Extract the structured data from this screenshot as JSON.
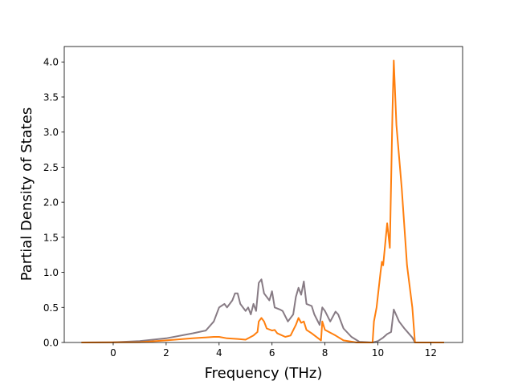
{
  "chart_data": {
    "type": "line",
    "title": "",
    "xlabel": "Frequency (THz)",
    "ylabel": "Partial Density of States",
    "xlim": [
      -1.85,
      13.2
    ],
    "ylim": [
      0,
      4.22
    ],
    "xticks": [
      0,
      2,
      4,
      6,
      8,
      10,
      12
    ],
    "xtick_labels": [
      "0",
      "2",
      "4",
      "6",
      "8",
      "10",
      "12"
    ],
    "yticks": [
      0,
      0.5,
      1,
      1.5,
      2,
      2.5,
      3,
      3.5,
      4
    ],
    "ytick_labels": [
      "0.0",
      "0.5",
      "1.0",
      "1.5",
      "2.0",
      "2.5",
      "3.0",
      "3.5",
      "4.0"
    ],
    "grid": false,
    "series": [
      {
        "color": "#877b84",
        "x": [
          -1.2,
          0,
          1,
          2,
          3,
          3.5,
          3.8,
          4.0,
          4.2,
          4.3,
          4.5,
          4.6,
          4.7,
          4.8,
          5.0,
          5.1,
          5.2,
          5.3,
          5.4,
          5.5,
          5.6,
          5.7,
          5.9,
          6.0,
          6.1,
          6.3,
          6.4,
          6.6,
          6.8,
          6.9,
          7.0,
          7.1,
          7.2,
          7.3,
          7.5,
          7.6,
          7.8,
          7.9,
          8.0,
          8.2,
          8.4,
          8.5,
          8.7,
          9.0,
          9.3,
          9.8,
          10.0,
          10.2,
          10.35,
          10.5,
          10.6,
          10.8,
          11.0,
          11.3,
          11.4,
          12.5
        ],
        "y": [
          0,
          0.002,
          0.02,
          0.06,
          0.13,
          0.17,
          0.3,
          0.5,
          0.55,
          0.5,
          0.6,
          0.7,
          0.7,
          0.55,
          0.45,
          0.5,
          0.4,
          0.55,
          0.45,
          0.85,
          0.9,
          0.7,
          0.6,
          0.73,
          0.5,
          0.47,
          0.45,
          0.3,
          0.4,
          0.65,
          0.78,
          0.68,
          0.87,
          0.55,
          0.52,
          0.4,
          0.25,
          0.5,
          0.45,
          0.3,
          0.44,
          0.4,
          0.2,
          0.08,
          0.01,
          0,
          0.02,
          0.07,
          0.12,
          0.15,
          0.47,
          0.3,
          0.2,
          0.07,
          0,
          0
        ]
      },
      {
        "color": "#ff7f0e",
        "x": [
          -1.2,
          1,
          2,
          3,
          3.8,
          4.0,
          4.3,
          4.7,
          5.0,
          5.3,
          5.45,
          5.5,
          5.6,
          5.7,
          5.8,
          6.0,
          6.1,
          6.2,
          6.5,
          6.7,
          6.9,
          7.0,
          7.1,
          7.2,
          7.3,
          7.5,
          7.85,
          7.9,
          8.0,
          8.4,
          8.7,
          9.2,
          9.8,
          9.85,
          9.95,
          10.1,
          10.15,
          10.2,
          10.3,
          10.35,
          10.45,
          10.55,
          10.6,
          10.7,
          10.9,
          11.1,
          11.3,
          11.4,
          12.5
        ],
        "y": [
          0,
          0.005,
          0.03,
          0.06,
          0.08,
          0.08,
          0.06,
          0.05,
          0.04,
          0.1,
          0.15,
          0.3,
          0.35,
          0.3,
          0.2,
          0.17,
          0.18,
          0.13,
          0.08,
          0.1,
          0.25,
          0.35,
          0.28,
          0.3,
          0.18,
          0.13,
          0.03,
          0.3,
          0.18,
          0.1,
          0.03,
          0,
          0,
          0.3,
          0.5,
          1.0,
          1.15,
          1.1,
          1.5,
          1.7,
          1.35,
          3.3,
          4.02,
          3.1,
          2.2,
          1.1,
          0.5,
          0,
          0
        ]
      }
    ]
  }
}
